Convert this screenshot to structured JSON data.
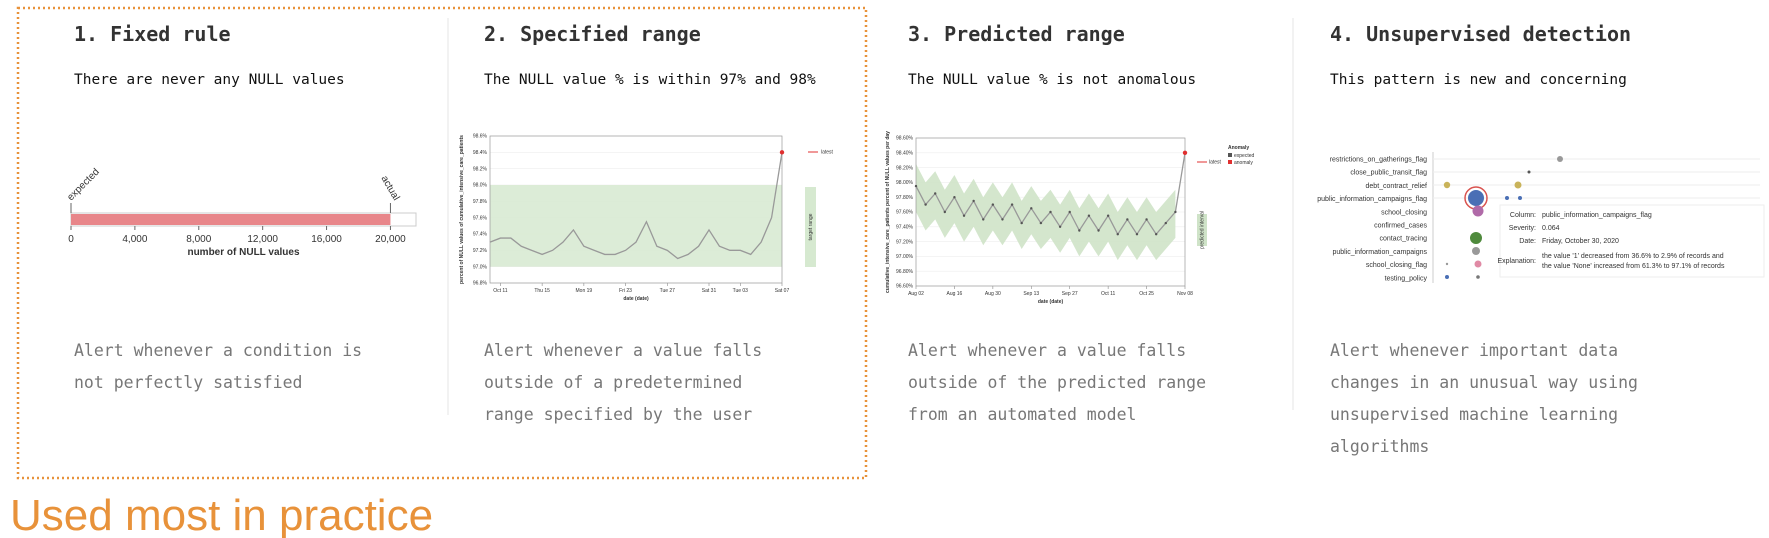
{
  "panels": [
    {
      "title": "1. Fixed rule",
      "subtitle": "There are never any NULL values",
      "description": [
        "Alert whenever a condition is",
        "not perfectly satisfied"
      ],
      "chart": {
        "type": "bar",
        "value": 20000,
        "color": "#e8868a",
        "xlim": [
          0,
          21600
        ],
        "xticks": [
          0,
          {
            "value": 4000,
            "label": "4,000"
          },
          {
            "value": 8000,
            "label": "8,000"
          },
          {
            "value": 12000,
            "label": "12,000"
          },
          {
            "value": 16000,
            "label": "16,000"
          },
          {
            "value": 20000,
            "label": "20,000"
          }
        ],
        "xlabel": "number of NULL values",
        "expected_label": "expected",
        "actual_label": "actual"
      }
    },
    {
      "title": "2. Specified range",
      "subtitle": "The NULL value % is within 97% and 98%",
      "description": [
        "Alert whenever a value falls",
        "outside of a predetermined",
        "range specified by the user"
      ],
      "chart": {
        "type": "line",
        "values": [
          97.3,
          97.35,
          97.35,
          97.25,
          97.2,
          97.15,
          97.2,
          97.3,
          97.45,
          97.25,
          97.2,
          97.15,
          97.15,
          97.2,
          97.3,
          97.55,
          97.25,
          97.2,
          97.1,
          97.15,
          97.25,
          97.45,
          97.25,
          97.2,
          97.2,
          97.15,
          97.3,
          97.6
        ],
        "latest": 98.4,
        "line_color": "#999999",
        "latest_color": "#e03030",
        "band_color": "#d6e9d0",
        "target_range": [
          97,
          98
        ],
        "ylim": [
          96.8,
          98.6
        ],
        "yticks": [
          {
            "value": 96.8,
            "label": "96.8%"
          },
          {
            "value": 97.0,
            "label": "97.0%"
          },
          {
            "value": 97.2,
            "label": "97.2%"
          },
          {
            "value": 97.4,
            "label": "97.4%"
          },
          {
            "value": 97.6,
            "label": "97.6%"
          },
          {
            "value": 97.8,
            "label": "97.8%"
          },
          {
            "value": 98.0,
            "label": "98.0%"
          },
          {
            "value": 98.2,
            "label": "98.2%"
          },
          {
            "value": 98.4,
            "label": "98.4%"
          },
          {
            "value": 98.6,
            "label": "98.6%"
          }
        ],
        "xlim": [
          0,
          28
        ],
        "xticks": [
          {
            "value": 1,
            "label": "Oct 11"
          },
          {
            "value": 5,
            "label": "Thu 15"
          },
          {
            "value": 9,
            "label": "Mon 19"
          },
          {
            "value": 13,
            "label": "Fri 23"
          },
          {
            "value": 17,
            "label": "Tue 27"
          },
          {
            "value": 21,
            "label": "Sat 31"
          },
          {
            "value": 24,
            "label": "Tue 03"
          },
          {
            "value": 28,
            "label": "Sat 07"
          }
        ],
        "xlabel": "date (date)",
        "ylabel": "percent of NULL values of cumulative_intensive_care_patients",
        "latest_label": "latest",
        "band_label": "target range"
      }
    },
    {
      "title": "3. Predicted range",
      "subtitle": "The NULL value % is not anomalous",
      "description": [
        "Alert whenever a value falls",
        "outside of the predicted range",
        "from an automated model"
      ],
      "chart": {
        "type": "line",
        "values": [
          97.95,
          97.7,
          97.85,
          97.6,
          97.8,
          97.55,
          97.75,
          97.5,
          97.7,
          97.5,
          97.7,
          97.45,
          97.65,
          97.45,
          97.6,
          97.4,
          97.6,
          97.35,
          97.55,
          97.35,
          97.55,
          97.3,
          97.5,
          97.3,
          97.5,
          97.3,
          97.45,
          97.6
        ],
        "lower": [
          97.6,
          97.35,
          97.5,
          97.25,
          97.45,
          97.2,
          97.4,
          97.15,
          97.35,
          97.15,
          97.35,
          97.1,
          97.3,
          97.1,
          97.25,
          97.05,
          97.25,
          97.0,
          97.2,
          97.0,
          97.2,
          96.95,
          97.15,
          96.95,
          97.15,
          96.95,
          97.1,
          97.25
        ],
        "upper": [
          98.25,
          98.0,
          98.15,
          97.9,
          98.1,
          97.85,
          98.05,
          97.8,
          98.0,
          97.8,
          98.0,
          97.75,
          97.95,
          97.75,
          97.9,
          97.7,
          97.9,
          97.65,
          97.85,
          97.65,
          97.85,
          97.6,
          97.8,
          97.6,
          97.8,
          97.6,
          97.75,
          97.9
        ],
        "latest": 98.4,
        "line_color": "#999999",
        "point_color": "#555555",
        "latest_color": "#e03030",
        "band_color": "#cfe3c8",
        "ylim": [
          96.6,
          98.6
        ],
        "yticks": [
          {
            "value": 96.6,
            "label": "96.60%"
          },
          {
            "value": 96.8,
            "label": "96.80%"
          },
          {
            "value": 97.0,
            "label": "97.00%"
          },
          {
            "value": 97.2,
            "label": "97.20%"
          },
          {
            "value": 97.4,
            "label": "97.40%"
          },
          {
            "value": 97.6,
            "label": "97.60%"
          },
          {
            "value": 97.8,
            "label": "97.80%"
          },
          {
            "value": 98.0,
            "label": "98.00%"
          },
          {
            "value": 98.2,
            "label": "98.20%"
          },
          {
            "value": 98.4,
            "label": "98.40%"
          },
          {
            "value": 98.6,
            "label": "98.60%"
          }
        ],
        "xlim": [
          0,
          28
        ],
        "xticks": [
          {
            "value": 0,
            "label": "Aug 02"
          },
          {
            "value": 4,
            "label": "Aug 16"
          },
          {
            "value": 8,
            "label": "Aug 30"
          },
          {
            "value": 12,
            "label": "Sep 13"
          },
          {
            "value": 16,
            "label": "Sep 27"
          },
          {
            "value": 20,
            "label": "Oct 11"
          },
          {
            "value": 24,
            "label": "Oct 25"
          },
          {
            "value": 28,
            "label": "Nov 08"
          }
        ],
        "xlabel": "date (date)",
        "ylabel": "cumulative_intensive_care_patients percent of NULL values per day",
        "legend_title": "Anomaly",
        "expected_label": "expected",
        "anomaly_label": "anomaly",
        "latest_label": "latest",
        "band_label": "predicted interval"
      }
    },
    {
      "title": "4. Unsupervised detection",
      "subtitle": "This pattern is new and concerning",
      "description": [
        "Alert whenever important data",
        "changes in an unusual way using",
        "unsupervised machine learning",
        "algorithms"
      ],
      "chart": {
        "type": "dotplot",
        "categories": [
          "restrictions_on_gatherings_flag",
          "close_public_transit_flag",
          "debt_contract_relief",
          "public_information_campaigns_flag",
          "school_closing",
          "confirmed_cases",
          "contact_tracing",
          "public_information_campaigns",
          "school_closing_flag",
          "testing_policy"
        ],
        "tooltip": {
          "column_label": "Column:",
          "column": "public_information_campaigns_flag",
          "severity_label": "Severity:",
          "severity": 0.064,
          "date_label": "Date:",
          "date": "Friday, October 30, 2020",
          "explanation_label": "Explanation:",
          "explanation": [
            "the value '1' decreased from 36.6% to 2.9% of records and",
            "the value 'None' increased from 61.3% to 97.1% of records"
          ]
        }
      }
    }
  ],
  "footer": "Used most in practice"
}
